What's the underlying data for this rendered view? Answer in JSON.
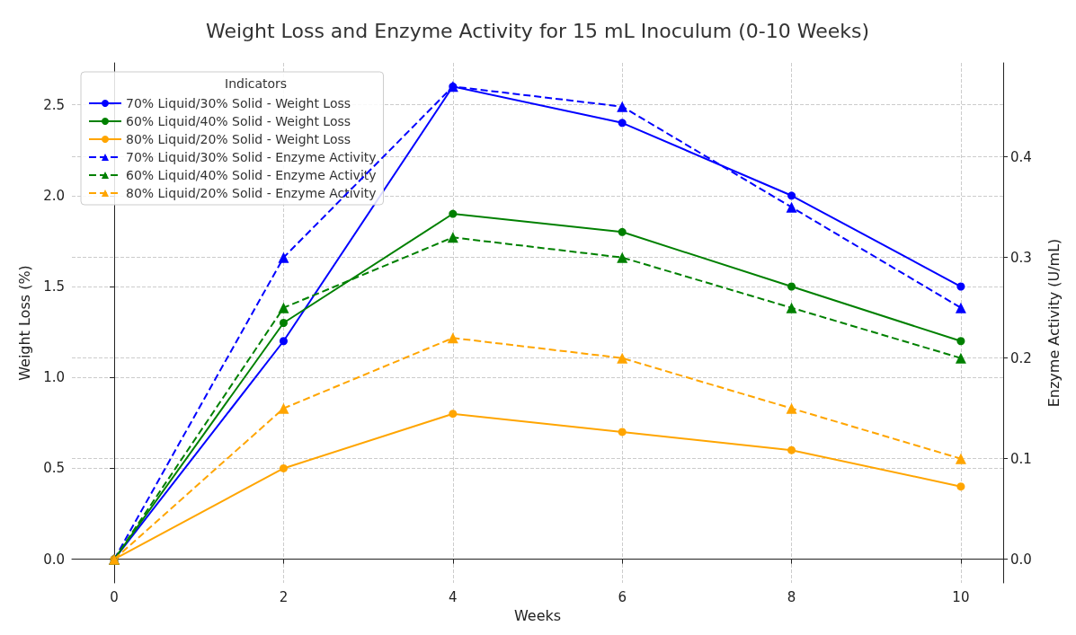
{
  "chart_data": {
    "type": "line",
    "title": "Weight Loss and Enzyme Activity for 15 mL Inoculum (0-10 Weeks)",
    "xlabel": "Weeks",
    "ylabel": "Weight Loss (%)",
    "y2label": "Enzyme Activity (U/mL)",
    "legend_title": "Indicators",
    "legend": "top left",
    "grid": true,
    "x": [
      0,
      2,
      4,
      6,
      8,
      10
    ],
    "xlim": [
      -0.5,
      10.5
    ],
    "xticks": [
      0,
      2,
      4,
      6,
      8,
      10
    ],
    "ylim": [
      -0.13,
      2.73
    ],
    "yticks": [
      {
        "value": 0,
        "label": "0.0"
      },
      {
        "value": 0.5,
        "label": "0.5"
      },
      {
        "value": 1,
        "label": "1.0"
      },
      {
        "value": 1.5,
        "label": "1.5"
      },
      {
        "value": 2,
        "label": "2.0"
      },
      {
        "value": 2.5,
        "label": "2.5"
      }
    ],
    "y2lim": [
      -0.0235,
      0.4935
    ],
    "y2ticks": [
      {
        "value": 0,
        "label": "0.0"
      },
      {
        "value": 0.1,
        "label": "0.1"
      },
      {
        "value": 0.2,
        "label": "0.2"
      },
      {
        "value": 0.3,
        "label": "0.3"
      },
      {
        "value": 0.4,
        "label": "0.4"
      }
    ],
    "series": [
      {
        "name": "70% Liquid/30% Solid - Weight Loss",
        "color": "#0000ff",
        "marker": "circle",
        "line_style": "solid",
        "values": [
          0,
          1.2,
          2.6,
          2.4,
          2.0,
          1.5
        ]
      },
      {
        "name": "60% Liquid/40% Solid - Weight Loss",
        "color": "#008000",
        "marker": "circle",
        "line_style": "solid",
        "values": [
          0,
          1.3,
          1.9,
          1.8,
          1.5,
          1.2
        ]
      },
      {
        "name": "80% Liquid/20% Solid - Weight Loss",
        "color": "#ffa500",
        "marker": "circle",
        "line_style": "solid",
        "values": [
          0,
          0.5,
          0.8,
          0.7,
          0.6,
          0.4
        ]
      },
      {
        "name": "70% Liquid/30% Solid - Enzyme Activity",
        "color": "#0000ff",
        "marker": "triangle",
        "line_style": "dashed",
        "axis": "y2",
        "values": [
          0,
          0.3,
          0.47,
          0.45,
          0.35,
          0.25
        ]
      },
      {
        "name": "60% Liquid/40% Solid - Enzyme Activity",
        "color": "#008000",
        "marker": "triangle",
        "line_style": "dashed",
        "axis": "y2",
        "values": [
          0,
          0.25,
          0.32,
          0.3,
          0.25,
          0.2
        ]
      },
      {
        "name": "80% Liquid/20% Solid - Enzyme Activity",
        "color": "#ffa500",
        "marker": "triangle",
        "line_style": "dashed",
        "axis": "y2",
        "values": [
          0,
          0.15,
          0.22,
          0.2,
          0.15,
          0.1
        ]
      }
    ]
  }
}
